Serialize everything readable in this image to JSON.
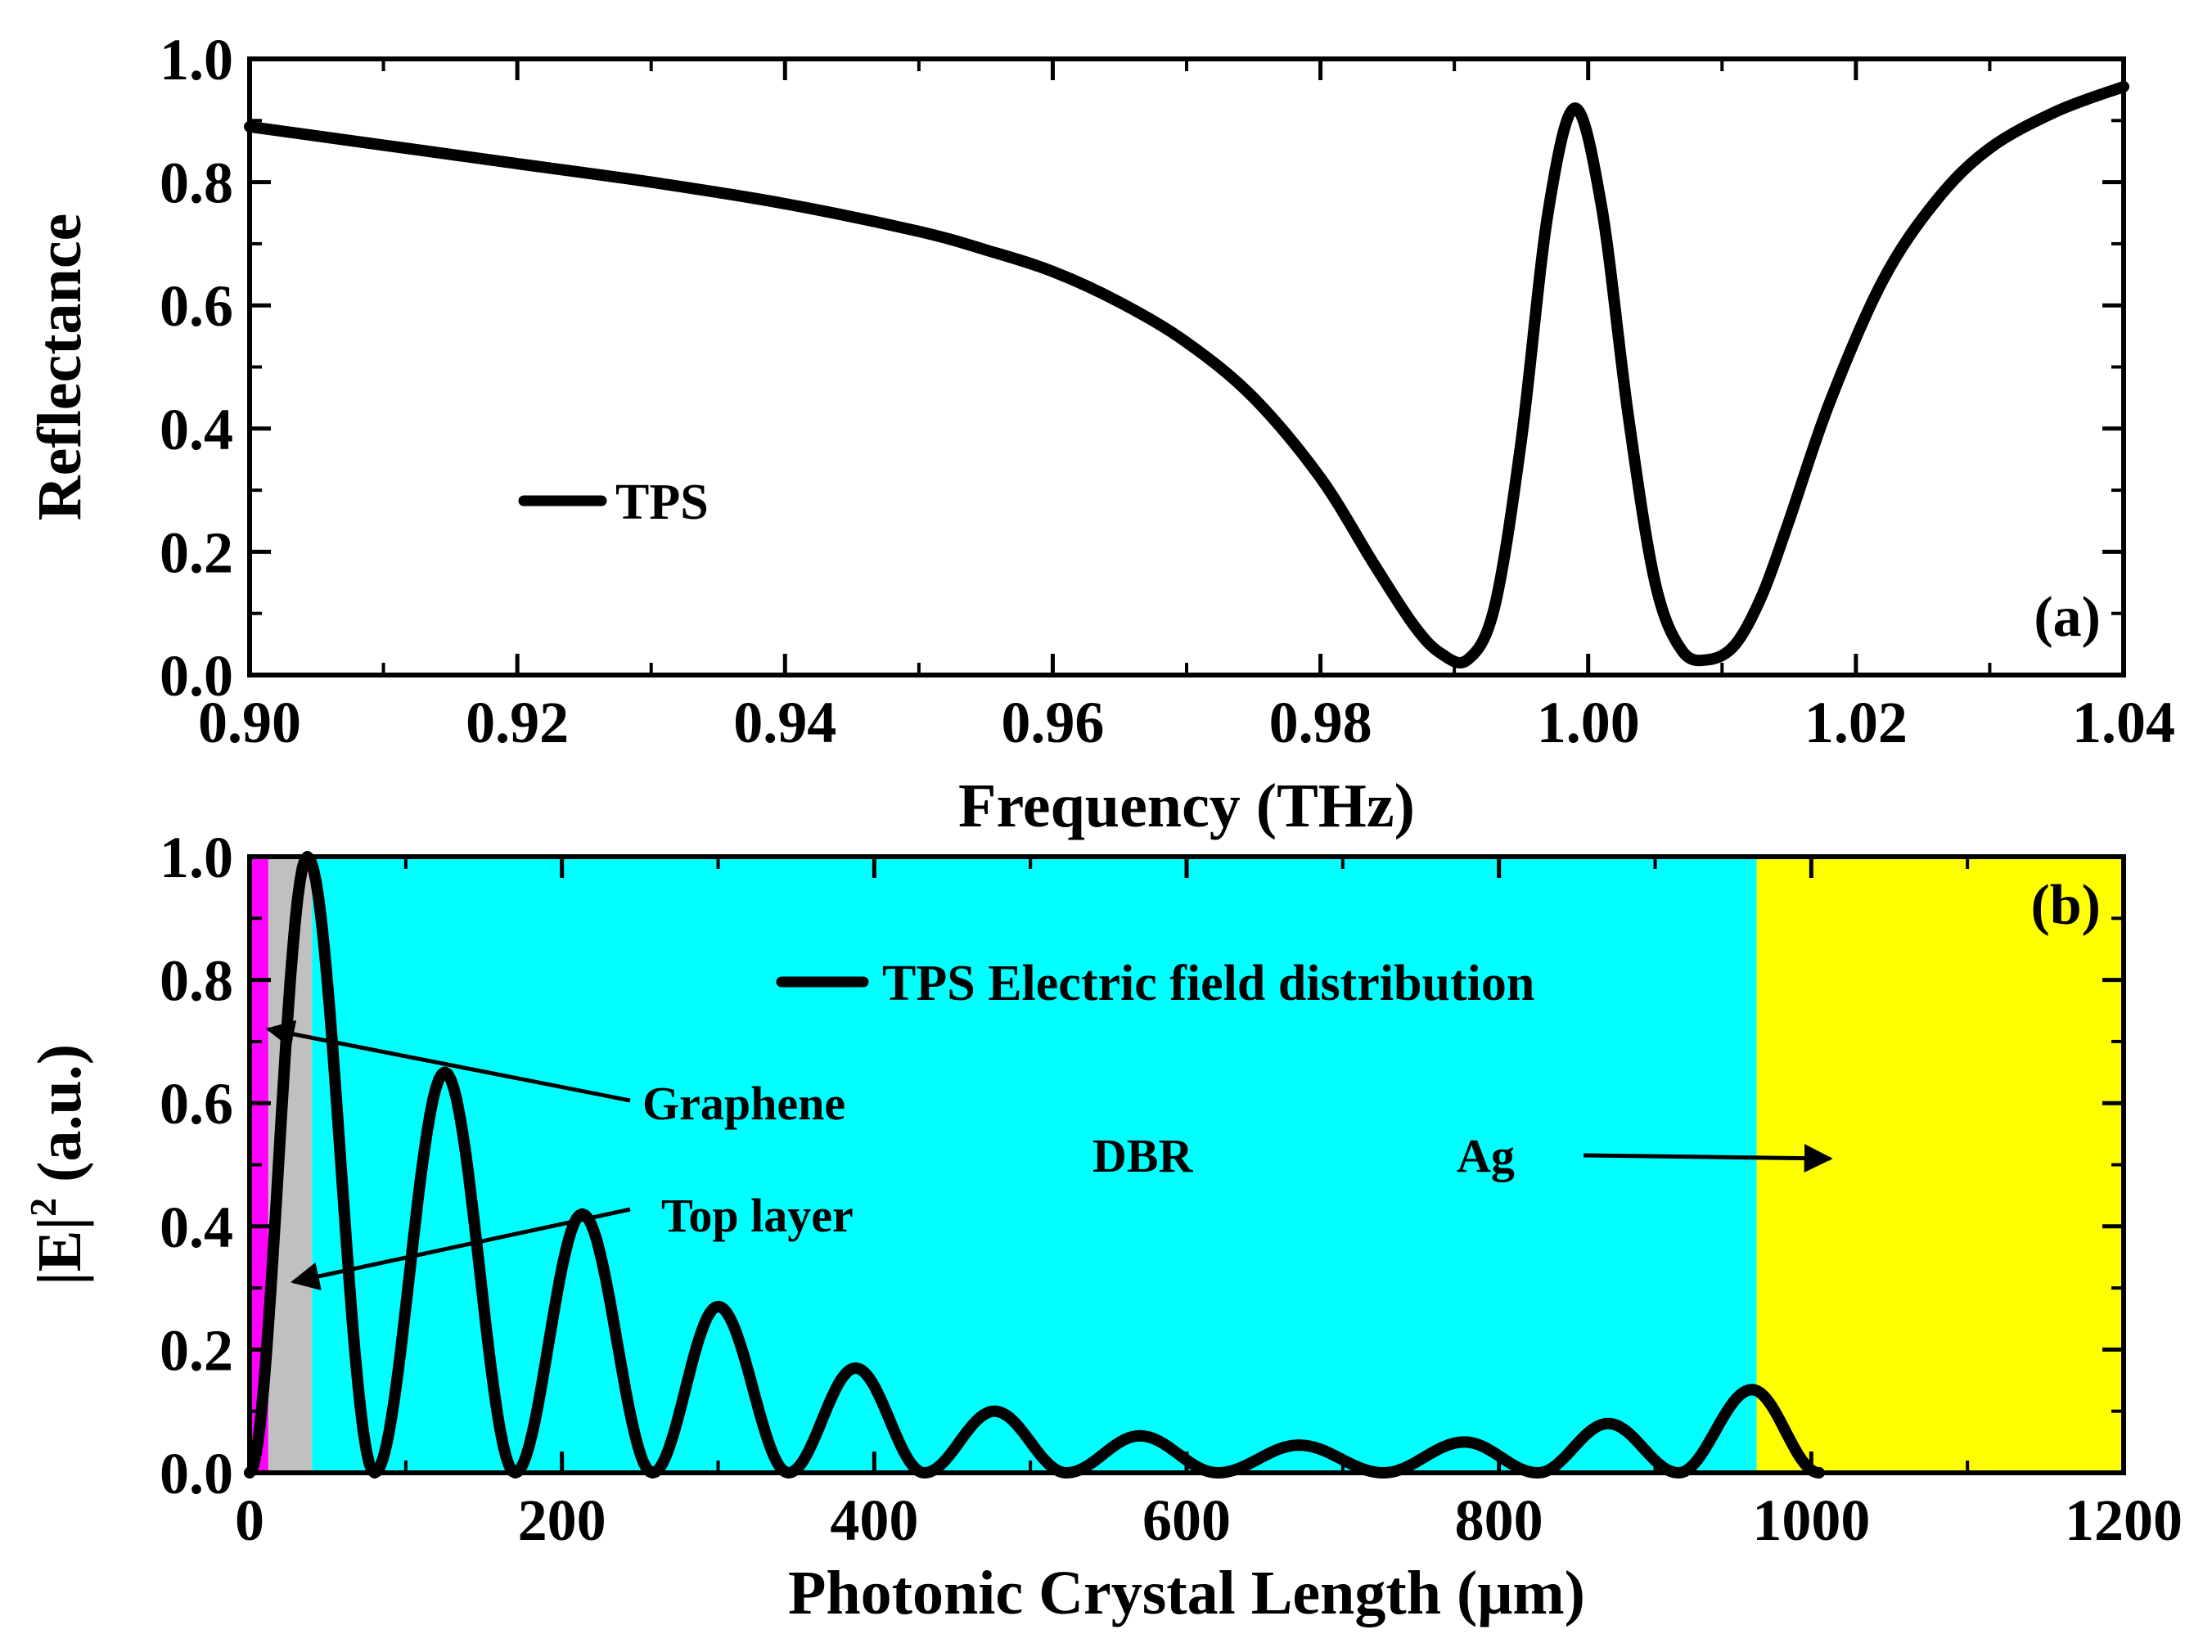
{
  "chart_data": [
    {
      "panel": "a",
      "type": "line",
      "panel_label": "(a)",
      "xlabel": "Frequency (THz)",
      "ylabel": "Reflectance",
      "xlim": [
        0.9,
        1.04
      ],
      "ylim": [
        0.0,
        1.0
      ],
      "xticks": [
        0.9,
        0.92,
        0.94,
        0.96,
        0.98,
        1.0,
        1.02,
        1.04
      ],
      "xtick_labels": [
        "0.90",
        "0.92",
        "0.94",
        "0.96",
        "0.98",
        "1.00",
        "1.02",
        "1.04"
      ],
      "yticks": [
        0.0,
        0.2,
        0.4,
        0.6,
        0.8,
        1.0
      ],
      "ytick_labels": [
        "0.0",
        "0.2",
        "0.4",
        "0.6",
        "0.8",
        "1.0"
      ],
      "legend_location": "lower-left",
      "series": [
        {
          "name": "TPS",
          "color": "#000000",
          "x": [
            0.9,
            0.91,
            0.92,
            0.93,
            0.94,
            0.95,
            0.955,
            0.96,
            0.965,
            0.97,
            0.975,
            0.98,
            0.984,
            0.987,
            0.989,
            0.991,
            0.993,
            0.995,
            0.997,
            0.999,
            1.001,
            1.003,
            1.005,
            1.007,
            1.009,
            1.011,
            1.013,
            1.015,
            1.018,
            1.022,
            1.026,
            1.03,
            1.035,
            1.04
          ],
          "y": [
            0.89,
            0.86,
            0.83,
            0.8,
            0.765,
            0.72,
            0.69,
            0.655,
            0.605,
            0.54,
            0.45,
            0.32,
            0.18,
            0.08,
            0.035,
            0.025,
            0.11,
            0.38,
            0.75,
            0.92,
            0.76,
            0.42,
            0.15,
            0.04,
            0.025,
            0.05,
            0.13,
            0.25,
            0.44,
            0.64,
            0.77,
            0.855,
            0.915,
            0.955
          ]
        }
      ]
    },
    {
      "panel": "b",
      "type": "line",
      "panel_label": "(b)",
      "xlabel": "Photonic Crystal Length (μm)",
      "ylabel_main": "|E|",
      "ylabel_sup": "2",
      "ylabel_tail": " (a.u.)",
      "xlim": [
        0,
        1200
      ],
      "ylim": [
        0.0,
        1.0
      ],
      "xticks": [
        0,
        200,
        400,
        600,
        800,
        1000,
        1200
      ],
      "xtick_labels": [
        "0",
        "200",
        "400",
        "600",
        "800",
        "1000",
        "1200"
      ],
      "yticks": [
        0.0,
        0.2,
        0.4,
        0.6,
        0.8,
        1.0
      ],
      "ytick_labels": [
        "0.0",
        "0.2",
        "0.4",
        "0.6",
        "0.8",
        "1.0"
      ],
      "legend_location": "top-center",
      "regions": [
        {
          "name": "Graphene",
          "from": 0,
          "to": 12,
          "color": "#ff00ff"
        },
        {
          "name": "Top layer",
          "from": 12,
          "to": 40,
          "color": "#c0c0c0"
        },
        {
          "name": "DBR",
          "from": 40,
          "to": 965,
          "color": "#00ffff"
        },
        {
          "name": "Ag",
          "from": 965,
          "to": 1200,
          "color": "#ffff00"
        }
      ],
      "annotations": [
        {
          "text": "Graphene",
          "arrow_to": [
            12,
            0.72
          ]
        },
        {
          "text": "Top layer",
          "arrow_to": [
            28,
            0.31
          ]
        },
        {
          "text": "DBR"
        },
        {
          "text": "Ag",
          "arrow_to": [
            1012,
            0.51
          ]
        }
      ],
      "series": [
        {
          "name": "TPS Electric field distribution",
          "color": "#000000",
          "peaks": [
            [
              37,
              1.0
            ],
            [
              125,
              0.65
            ],
            [
              213,
              0.42
            ],
            [
              300,
              0.27
            ],
            [
              388,
              0.17
            ],
            [
              477,
              0.1
            ],
            [
              570,
              0.06
            ],
            [
              672,
              0.045
            ],
            [
              778,
              0.05
            ],
            [
              870,
              0.08
            ],
            [
              962,
              0.135
            ]
          ],
          "valleys": [
            [
              0,
              0.0
            ],
            [
              80,
              0.0
            ],
            [
              170,
              0.0
            ],
            [
              258,
              0.0
            ],
            [
              345,
              0.0
            ],
            [
              432,
              0.0
            ],
            [
              523,
              0.0
            ],
            [
              620,
              0.0
            ],
            [
              726,
              0.0
            ],
            [
              825,
              0.0
            ],
            [
              915,
              0.0
            ],
            [
              1005,
              0.0
            ]
          ]
        }
      ]
    }
  ]
}
